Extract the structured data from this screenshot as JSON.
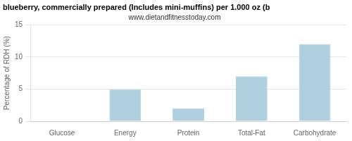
{
  "chart_data": {
    "type": "bar",
    "title": "blueberry, commercially prepared (Includes mini-muffins) per 1.000 oz (b",
    "subtitle": "www.dietandfitnesstoday.com",
    "categories": [
      "Glucose",
      "Energy",
      "Protein",
      "Total-Fat",
      "Carbohydrate"
    ],
    "values": [
      0,
      5.0,
      2.0,
      7.0,
      12.0
    ],
    "color": "#aecfde",
    "ylabel": "Percentage of RDH (%)",
    "ylim": [
      0,
      15
    ],
    "yticks": [
      0,
      5,
      10,
      15
    ],
    "grid": true
  }
}
